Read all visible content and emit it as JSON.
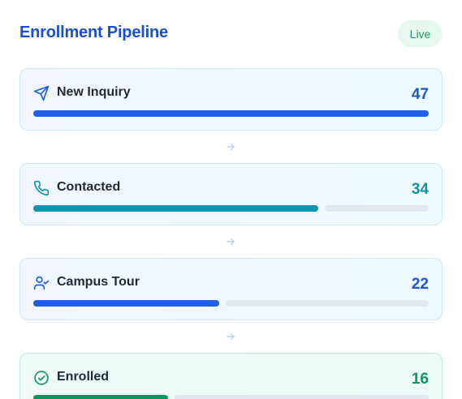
{
  "header": {
    "title": "Enrollment Pipeline",
    "badge": "Live"
  },
  "colors": {
    "blue": "#1f5fe6",
    "teal": "#0e93b0",
    "green": "#11955e",
    "track": "#e3e7ee"
  },
  "stages": [
    {
      "label": "New Inquiry",
      "count": "47",
      "icon": "send-icon",
      "color": "#1f5fe6",
      "count_color": "#1f56c8",
      "fraction": 1.0
    },
    {
      "label": "Contacted",
      "count": "34",
      "icon": "phone-icon",
      "color": "#0e93b0",
      "count_color": "#0f8fa8",
      "fraction": 0.72
    },
    {
      "label": "Campus Tour",
      "count": "22",
      "icon": "user-check-icon",
      "color": "#1f5fe6",
      "count_color": "#1f56c8",
      "fraction": 0.47
    },
    {
      "label": "Enrolled",
      "count": "16",
      "icon": "check-circle-icon",
      "color": "#11955e",
      "count_color": "#11955e",
      "fraction": 0.34
    }
  ],
  "connector_icon": "arrow-right-icon"
}
